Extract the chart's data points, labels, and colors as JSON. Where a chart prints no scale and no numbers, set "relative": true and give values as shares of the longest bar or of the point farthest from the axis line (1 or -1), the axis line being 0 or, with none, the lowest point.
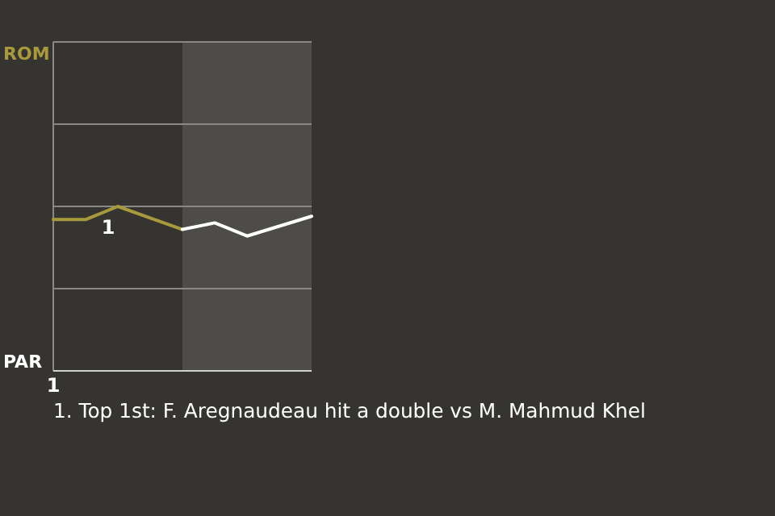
{
  "chart_data": {
    "type": "line",
    "relative": true,
    "categories": [
      null,
      null,
      null,
      null,
      null,
      null,
      null,
      null,
      null
    ],
    "ref_lines": [
      {
        "axis": "y",
        "value": 0.5,
        "color": "#8a8986"
      },
      {
        "axis": "y",
        "value": 1,
        "color": "#8a8986"
      },
      {
        "axis": "y",
        "value": 1.5,
        "color": "#8a8986"
      }
    ],
    "marker": "none",
    "line_style": "solid",
    "series": [
      {
        "color": "#a89a3c",
        "values": [
          0.92,
          0.92,
          1,
          0.93,
          0.86,
          null,
          null,
          null,
          null
        ]
      },
      {
        "color": "#ffffff",
        "values": [
          null,
          null,
          null,
          null,
          0.86,
          0.9,
          0.82,
          0.88,
          0.94
        ]
      }
    ],
    "annotations": [
      "ROM",
      "PAR",
      "1",
      "1",
      "1. Top 1st: F. Aregnaudeau hit a double vs M. Mahmud Khel"
    ]
  }
}
